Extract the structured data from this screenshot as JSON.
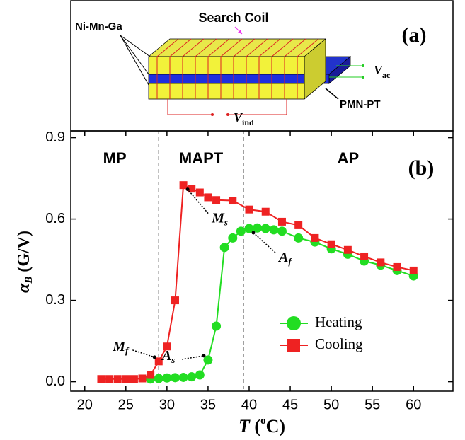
{
  "diagram": {
    "panel_label": "(a)",
    "search_coil": "Search Coil",
    "alloy": "Ni-Mn-Ga",
    "substrate": "PMN-PT",
    "v_ac": {
      "main": "V",
      "sub": "ac"
    },
    "v_ind": {
      "main": "V",
      "sub": "ind"
    }
  },
  "chart_data": {
    "type": "line",
    "panel_label": "(b)",
    "x_label": {
      "main": "T",
      "open": " (",
      "sup": "o",
      "close": "C)"
    },
    "y_label": {
      "main": "α",
      "sub": "B",
      "rest": " (G/V)"
    },
    "xlim": [
      18.3,
      64.8
    ],
    "ylim": [
      -0.035,
      0.925
    ],
    "xticks": [
      20,
      25,
      30,
      35,
      40,
      45,
      50,
      55,
      60
    ],
    "yticks": [
      {
        "value": 0,
        "label": "0.0"
      },
      0.3,
      0.6,
      0.9
    ],
    "phase_boundaries": [
      29,
      39.3
    ],
    "regions": [
      "MP",
      "MAPT",
      "AP"
    ],
    "legend": "lower right",
    "series": [
      {
        "name": "Heating",
        "color": "#22dd22",
        "marker": "circle",
        "x": [
          28,
          29,
          30,
          31,
          32,
          33,
          34,
          35,
          36,
          37,
          38,
          39,
          40,
          41,
          42,
          43,
          44,
          46,
          48,
          50,
          52,
          54,
          56,
          58,
          60
        ],
        "values": [
          0.01,
          0.012,
          0.014,
          0.015,
          0.016,
          0.018,
          0.025,
          0.08,
          0.205,
          0.495,
          0.53,
          0.555,
          0.565,
          0.567,
          0.565,
          0.56,
          0.555,
          0.53,
          0.515,
          0.49,
          0.47,
          0.445,
          0.43,
          0.41,
          0.39
        ]
      },
      {
        "name": "Cooling",
        "color": "#ee2222",
        "marker": "square",
        "x": [
          22,
          23,
          24,
          25,
          26,
          27,
          28,
          29,
          30,
          31,
          32,
          33,
          34,
          35,
          36,
          38,
          40,
          42,
          44,
          46,
          48,
          50,
          52,
          54,
          56,
          58,
          60
        ],
        "values": [
          0.01,
          0.01,
          0.01,
          0.01,
          0.01,
          0.012,
          0.025,
          0.075,
          0.13,
          0.3,
          0.725,
          0.712,
          0.698,
          0.68,
          0.67,
          0.668,
          0.635,
          0.627,
          0.59,
          0.577,
          0.53,
          0.507,
          0.486,
          0.462,
          0.44,
          0.423,
          0.41
        ]
      }
    ],
    "annotations": [
      {
        "main": "M",
        "sub": "s"
      },
      {
        "main": "A",
        "sub": "f"
      },
      {
        "main": "M",
        "sub": "f"
      },
      {
        "main": "A",
        "sub": "s"
      }
    ]
  }
}
